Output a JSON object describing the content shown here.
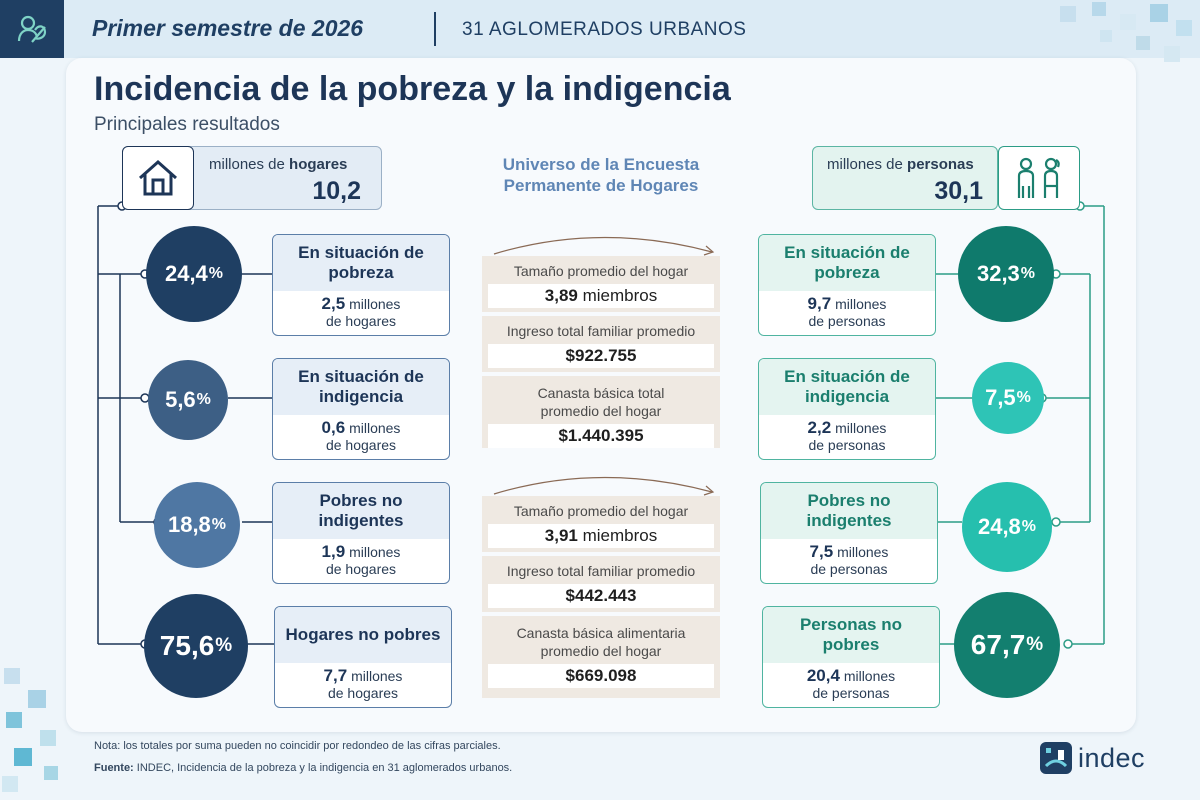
{
  "header": {
    "period": "Primer semestre de 2026",
    "scope": "31 AGLOMERADOS URBANOS"
  },
  "title": "Incidencia de la pobreza y la indigencia",
  "subtitle": "Principales resultados",
  "universe": {
    "households_label_pre": "millones de ",
    "households_label_bold": "hogares",
    "households_value": "10,2",
    "center_label": "Universo de la Encuesta Permanente de Hogares",
    "persons_label_pre": "millones de ",
    "persons_label_bold": "personas",
    "persons_value": "30,1"
  },
  "households": [
    {
      "pct": "24,4",
      "title": "En situación de pobreza",
      "count": "2,5",
      "unit1": "millones",
      "unit2": "de hogares"
    },
    {
      "pct": "5,6",
      "title": "En situación de indigencia",
      "count": "0,6",
      "unit1": "millones",
      "unit2": "de hogares"
    },
    {
      "pct": "18,8",
      "title": "Pobres no indigentes",
      "count": "1,9",
      "unit1": "millones",
      "unit2": "de hogares"
    },
    {
      "pct": "75,6",
      "title": "Hogares no pobres",
      "count": "7,7",
      "unit1": "millones",
      "unit2": "de hogares"
    }
  ],
  "persons": [
    {
      "pct": "32,3",
      "title": "En situación de pobreza",
      "count": "9,7",
      "unit1": "millones",
      "unit2": "de personas"
    },
    {
      "pct": "7,5",
      "title": "En situación de indigencia",
      "count": "2,2",
      "unit1": "millones",
      "unit2": "de personas"
    },
    {
      "pct": "24,8",
      "title": "Pobres no indigentes",
      "count": "7,5",
      "unit1": "millones",
      "unit2": "de personas"
    },
    {
      "pct": "67,7",
      "title": "Personas no pobres",
      "count": "20,4",
      "unit1": "millones",
      "unit2": "de personas"
    }
  ],
  "middle": {
    "group1": [
      {
        "label": "Tamaño promedio del hogar",
        "value": "3,89",
        "unit": "miembros"
      },
      {
        "label": "Ingreso total familiar promedio",
        "value": "$922.755",
        "unit": ""
      },
      {
        "label": "Canasta básica total promedio del hogar",
        "value": "$1.440.395",
        "unit": ""
      }
    ],
    "group2": [
      {
        "label": "Tamaño promedio del hogar",
        "value": "3,91",
        "unit": "miembros"
      },
      {
        "label": "Ingreso total familiar promedio",
        "value": "$442.443",
        "unit": ""
      },
      {
        "label": "Canasta básica alimentaria promedio del hogar",
        "value": "$669.098",
        "unit": ""
      }
    ]
  },
  "footer": {
    "note": "Nota: los totales por suma pueden no coincidir por redondeo de las cifras parciales.",
    "source_label": "Fuente:",
    "source_text": " INDEC, Incidencia de la pobreza y la indigencia en 31 aglomerados urbanos.",
    "brand": "indec"
  },
  "colors": {
    "navy": "#1d3557",
    "household_circles": [
      "#1f3f63",
      "#3d5f85",
      "#4f77a3",
      "#1f3f63"
    ],
    "person_circles": [
      "#0f7a6c",
      "#2ec4b6",
      "#26bfae",
      "#137f6f"
    ],
    "teal_text": "#1b7f6e"
  },
  "icons": {
    "logo": "brand-logo-icon",
    "house": "house-icon",
    "people": "people-icon"
  }
}
